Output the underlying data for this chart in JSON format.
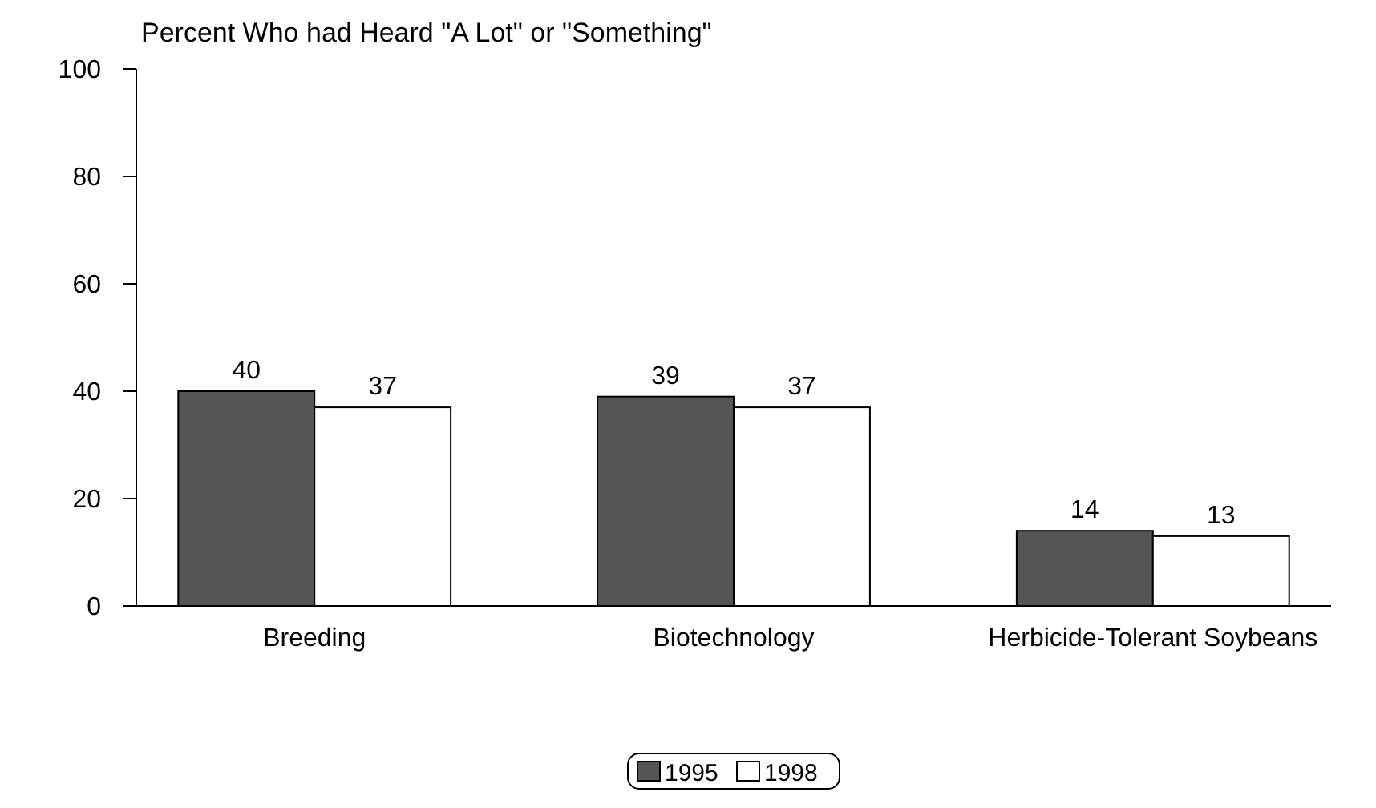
{
  "chart_data": {
    "type": "bar",
    "title": "Percent Who had Heard \"A Lot\" or \"Something\"",
    "categories": [
      "Breeding",
      "Biotechnology",
      "Herbicide-Tolerant Soybeans"
    ],
    "series": [
      {
        "name": "1995",
        "color": "#555555",
        "values": [
          40,
          39,
          14
        ]
      },
      {
        "name": "1998",
        "color": "#ffffff",
        "values": [
          37,
          37,
          13
        ]
      }
    ],
    "ylim": [
      0,
      100
    ],
    "yticks": [
      0,
      20,
      40,
      60,
      80,
      100
    ],
    "data_labels": true,
    "legend": "bottom",
    "grid": false
  }
}
